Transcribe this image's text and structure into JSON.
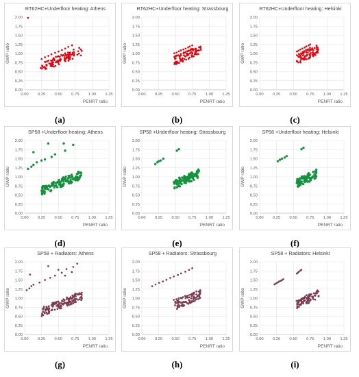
{
  "figure": {
    "panels": [
      {
        "id": "a",
        "caption": "(a)",
        "title": "RT62HC+Underfloor heating: Athens",
        "color": "#e8000b",
        "dot_size": "small"
      },
      {
        "id": "b",
        "caption": "(b)",
        "title": "RT62HC+Underfloor heating: Strassbourg",
        "color": "#e8000b",
        "dot_size": "small"
      },
      {
        "id": "c",
        "caption": "(c)",
        "title": "RT62HC+Underfloor heating: Helsinki",
        "color": "#e8000b",
        "dot_size": "small"
      },
      {
        "id": "d",
        "caption": "(d)",
        "title": "SP58 +Underfloor heating: Athens",
        "color": "#14933c",
        "dot_size": "large"
      },
      {
        "id": "e",
        "caption": "(e)",
        "title": "SP58 +Underfloor heating: Strassbourg",
        "color": "#14933c",
        "dot_size": "large"
      },
      {
        "id": "f",
        "caption": "(f)",
        "title": "SP58 +Underfloor heating: Helsinki",
        "color": "#14933c",
        "dot_size": "large"
      },
      {
        "id": "g",
        "caption": "(g)",
        "title": "SP58 + Radiators: Athens",
        "color": "#7b3a4e",
        "dot_size": "small"
      },
      {
        "id": "h",
        "caption": "(h)",
        "title": "SP58 + Radiators: Strassbourg",
        "color": "#7b3a4e",
        "dot_size": "small"
      },
      {
        "id": "i",
        "caption": "(i)",
        "title": "SP58 + Radiators: Helsinki",
        "color": "#7b3a4e",
        "dot_size": "small"
      }
    ]
  },
  "chart_data": [
    {
      "panel": "a",
      "type": "scatter",
      "title": "RT62HC+Underfloor heating: Athens",
      "xlabel": "PENRT ratio",
      "ylabel": "GWP ratio",
      "xlim": [
        0,
        1.25
      ],
      "ylim": [
        0,
        2.0
      ],
      "xticks": [
        "0.00",
        "0.25",
        "0.50",
        "0.75",
        "1.00",
        "1.25"
      ],
      "yticks": [
        "0.00",
        "0.25",
        "0.50",
        "0.75",
        "1.00",
        "1.25",
        "1.50",
        "1.75",
        "2.00"
      ],
      "grid": true,
      "clusters": [
        {
          "points": [
            [
              0.05,
              1.98
            ]
          ]
        },
        {
          "line": [
            0.25,
            0.85,
            0.7,
            1.22
          ],
          "count": 10,
          "jitter": 0.01
        },
        {
          "line": [
            0.25,
            0.6,
            0.7,
            0.98
          ],
          "count": 12,
          "jitter": 0.03
        },
        {
          "box": [
            0.25,
            0.85,
            0.45,
            0.9
          ],
          "count": 90
        }
      ]
    },
    {
      "panel": "b",
      "type": "scatter",
      "title": "RT62HC+Underfloor heating: Strassbourg",
      "xlabel": "PENRT ratio",
      "ylabel": "GWP ratio",
      "xlim": [
        0,
        1.25
      ],
      "ylim": [
        0,
        2.0
      ],
      "xticks": [
        "0.00",
        "0.25",
        "0.50",
        "0.75",
        "1.00",
        "1.25"
      ],
      "yticks": [
        "0.00",
        "0.25",
        "0.50",
        "0.75",
        "1.00",
        "1.25",
        "1.50",
        "1.75",
        "2.00"
      ],
      "grid": true,
      "clusters": [
        {
          "line": [
            0.48,
            1.0,
            0.75,
            1.22
          ],
          "count": 9,
          "jitter": 0.01
        },
        {
          "line": [
            0.48,
            0.9,
            0.75,
            1.12
          ],
          "count": 9,
          "jitter": 0.01
        },
        {
          "box": [
            0.48,
            0.88,
            0.62,
            0.95
          ],
          "count": 80
        }
      ]
    },
    {
      "panel": "c",
      "type": "scatter",
      "title": "RT62HC+Underfloor heating: Helsinki",
      "xlabel": "PENRT ratio",
      "ylabel": "GWP ratio",
      "xlim": [
        0,
        1.25
      ],
      "ylim": [
        0,
        2.0
      ],
      "xticks": [
        "0.00",
        "0.25",
        "0.50",
        "0.75",
        "1.00",
        "1.25"
      ],
      "yticks": [
        "0.00",
        "0.25",
        "0.50",
        "0.75",
        "1.00",
        "1.25",
        "1.50",
        "1.75",
        "2.00"
      ],
      "grid": true,
      "clusters": [
        {
          "line": [
            0.55,
            1.05,
            0.75,
            1.25
          ],
          "count": 8,
          "jitter": 0.01
        },
        {
          "line": [
            0.55,
            0.95,
            0.75,
            1.15
          ],
          "count": 8,
          "jitter": 0.01
        },
        {
          "box": [
            0.55,
            0.88,
            0.65,
            0.95
          ],
          "count": 70
        }
      ]
    },
    {
      "panel": "d",
      "type": "scatter",
      "title": "SP58 +Underfloor heating: Athens",
      "xlabel": "PENRT ratio",
      "ylabel": "GWP ratio",
      "xlim": [
        0,
        1.25
      ],
      "ylim": [
        0,
        2.0
      ],
      "xticks": [
        "0.00",
        "0.25",
        "0.50",
        "0.75",
        "1.00",
        "1.25"
      ],
      "yticks": [
        "0.00",
        "0.25",
        "0.50",
        "0.75",
        "1.00",
        "1.25",
        "1.50",
        "1.75",
        "2.00"
      ],
      "grid": true,
      "clusters": [
        {
          "points": [
            [
              0.05,
              1.22
            ],
            [
              0.1,
              1.28
            ],
            [
              0.13,
              1.33
            ],
            [
              0.18,
              1.4
            ],
            [
              0.25,
              1.45
            ],
            [
              0.3,
              1.48
            ],
            [
              0.4,
              1.55
            ],
            [
              0.45,
              1.62
            ],
            [
              0.6,
              1.72
            ],
            [
              0.72,
              1.88
            ],
            [
              0.13,
              1.68
            ],
            [
              0.35,
              1.92
            ],
            [
              0.58,
              1.92
            ]
          ]
        },
        {
          "line": [
            0.25,
            0.7,
            0.7,
            1.0
          ],
          "count": 10,
          "jitter": 0.02
        },
        {
          "box": [
            0.25,
            0.85,
            0.45,
            0.9
          ],
          "count": 110
        }
      ]
    },
    {
      "panel": "e",
      "type": "scatter",
      "title": "SP58 +Underfloor heating: Strassbourg",
      "xlabel": "PENRT ratio",
      "ylabel": "GWP ratio",
      "xlim": [
        0,
        1.25
      ],
      "ylim": [
        0,
        2.0
      ],
      "xticks": [
        "0.00",
        "0.25",
        "0.50",
        "0.75",
        "1.00",
        "1.25"
      ],
      "yticks": [
        "0.00",
        "0.25",
        "0.50",
        "0.75",
        "1.00",
        "1.25",
        "1.50",
        "1.75",
        "2.00"
      ],
      "grid": true,
      "clusters": [
        {
          "points": [
            [
              0.2,
              1.35
            ],
            [
              0.23,
              1.4
            ],
            [
              0.25,
              1.43
            ],
            [
              0.28,
              1.45
            ],
            [
              0.32,
              1.5
            ],
            [
              0.52,
              1.72
            ],
            [
              0.55,
              1.76
            ]
          ]
        },
        {
          "line": [
            0.48,
            0.85,
            0.75,
            1.02
          ],
          "count": 9,
          "jitter": 0.015
        },
        {
          "box": [
            0.48,
            0.85,
            0.62,
            0.92
          ],
          "count": 85
        }
      ]
    },
    {
      "panel": "f",
      "type": "scatter",
      "title": "SP58 +Underfloor heating: Helsinki",
      "xlabel": "PENRT ratio",
      "ylabel": "GWP ratio",
      "xlim": [
        0,
        1.25
      ],
      "ylim": [
        0,
        2.0
      ],
      "xticks": [
        "0.00",
        "0.25",
        "0.50",
        "0.75",
        "1.00",
        "1.25"
      ],
      "yticks": [
        "0.00",
        "0.25",
        "0.50",
        "0.75",
        "1.00",
        "1.25",
        "1.50",
        "1.75",
        "2.00"
      ],
      "grid": true,
      "clusters": [
        {
          "points": [
            [
              0.27,
              1.43
            ],
            [
              0.3,
              1.47
            ],
            [
              0.33,
              1.5
            ],
            [
              0.37,
              1.53
            ],
            [
              0.4,
              1.57
            ],
            [
              0.62,
              1.76
            ],
            [
              0.65,
              1.8
            ]
          ]
        },
        {
          "line": [
            0.55,
            0.9,
            0.75,
            1.05
          ],
          "count": 8,
          "jitter": 0.015
        },
        {
          "box": [
            0.55,
            0.85,
            0.65,
            0.92
          ],
          "count": 75
        }
      ]
    },
    {
      "panel": "g",
      "type": "scatter",
      "title": "SP58 + Radiators: Athens",
      "xlabel": "PENRT ratio",
      "ylabel": "GWP ratio",
      "xlim": [
        0,
        1.25
      ],
      "ylim": [
        0,
        2.0
      ],
      "xticks": [
        "0.00",
        "0.25",
        "0.50",
        "0.75",
        "1.00",
        "1.25"
      ],
      "yticks": [
        "0.00",
        "0.25",
        "0.50",
        "0.75",
        "1.00",
        "1.25",
        "1.50",
        "1.75",
        "2.00"
      ],
      "grid": true,
      "clusters": [
        {
          "points": [
            [
              0.03,
              1.22
            ],
            [
              0.07,
              1.27
            ],
            [
              0.1,
              1.33
            ],
            [
              0.13,
              1.37
            ],
            [
              0.22,
              1.43
            ],
            [
              0.3,
              1.5
            ],
            [
              0.38,
              1.56
            ],
            [
              0.45,
              1.62
            ],
            [
              0.55,
              1.7
            ],
            [
              0.62,
              1.8
            ],
            [
              0.72,
              1.86
            ],
            [
              0.78,
              1.95
            ],
            [
              0.08,
              1.65
            ],
            [
              0.35,
              1.88
            ],
            [
              0.5,
              1.78
            ],
            [
              0.7,
              1.72
            ],
            [
              0.6,
              1.62
            ]
          ]
        },
        {
          "line": [
            0.3,
            0.75,
            0.75,
            1.05
          ],
          "count": 10,
          "jitter": 0.03
        },
        {
          "box": [
            0.25,
            0.85,
            0.45,
            0.9
          ],
          "count": 150
        }
      ]
    },
    {
      "panel": "h",
      "type": "scatter",
      "title": "SP58 + Radiators: Strassbourg",
      "xlabel": "PENRT ratio",
      "ylabel": "GWP ratio",
      "xlim": [
        0,
        1.25
      ],
      "ylim": [
        0,
        2.0
      ],
      "xticks": [
        "0.00",
        "0.25",
        "0.50",
        "0.75",
        "1.00",
        "1.25"
      ],
      "yticks": [
        "0.00",
        "0.25",
        "0.50",
        "0.75",
        "1.00",
        "1.25",
        "1.50",
        "1.75",
        "2.00"
      ],
      "grid": true,
      "clusters": [
        {
          "line": [
            0.15,
            1.33,
            0.75,
            1.82
          ],
          "count": 12,
          "jitter": 0.01
        },
        {
          "line": [
            0.48,
            0.95,
            0.75,
            1.12
          ],
          "count": 9,
          "jitter": 0.015
        },
        {
          "box": [
            0.48,
            0.88,
            0.62,
            0.95
          ],
          "count": 95
        }
      ]
    },
    {
      "panel": "i",
      "type": "scatter",
      "title": "SP58 + Radiators: Helsinki",
      "xlabel": "PENRT ratio",
      "ylabel": "GWP ratio",
      "xlim": [
        0,
        1.25
      ],
      "ylim": [
        0,
        2.0
      ],
      "xticks": [
        "0.00",
        "0.25",
        "0.50",
        "0.75",
        "1.00",
        "1.25"
      ],
      "yticks": [
        "0.00",
        "0.25",
        "0.50",
        "0.75",
        "1.00",
        "1.25",
        "1.50",
        "1.75",
        "2.00"
      ],
      "grid": true,
      "clusters": [
        {
          "line": [
            0.22,
            1.38,
            0.35,
            1.52
          ],
          "count": 8,
          "jitter": 0.008
        },
        {
          "line": [
            0.55,
            1.68,
            0.62,
            1.78
          ],
          "count": 5,
          "jitter": 0.008
        },
        {
          "line": [
            0.55,
            0.92,
            0.75,
            1.05
          ],
          "count": 8,
          "jitter": 0.015
        },
        {
          "box": [
            0.55,
            0.88,
            0.65,
            0.95
          ],
          "count": 80
        }
      ]
    }
  ]
}
